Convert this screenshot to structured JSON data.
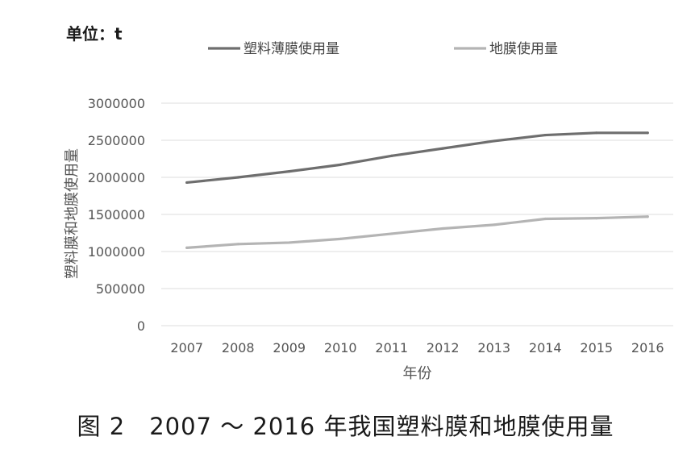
{
  "unit_label": "单位：t",
  "caption": "图 2　2007 ～ 2016 年我国塑料膜和地膜使用量",
  "colors": {
    "series_1": "#6e6e6e",
    "series_2": "#b4b4b4",
    "grid": "#dcdcdc",
    "text": "#555555"
  },
  "chart_data": {
    "type": "line",
    "title": "",
    "xlabel": "年份",
    "ylabel": "塑料膜和地膜使用量",
    "categories": [
      "2007",
      "2008",
      "2009",
      "2010",
      "2011",
      "2012",
      "2013",
      "2014",
      "2015",
      "2016"
    ],
    "ylim": [
      0,
      3000000
    ],
    "yticks": [
      "0",
      "500000",
      "1000000",
      "1500000",
      "2000000",
      "2500000",
      "3000000"
    ],
    "grid": true,
    "legend_position": "top",
    "series": [
      {
        "name": "塑料薄膜使用量",
        "values": [
          1930000,
          2000000,
          2080000,
          2170000,
          2290000,
          2390000,
          2490000,
          2570000,
          2600000,
          2600000
        ]
      },
      {
        "name": "地膜使用量",
        "values": [
          1050000,
          1100000,
          1120000,
          1170000,
          1240000,
          1310000,
          1360000,
          1440000,
          1450000,
          1470000
        ]
      }
    ]
  }
}
